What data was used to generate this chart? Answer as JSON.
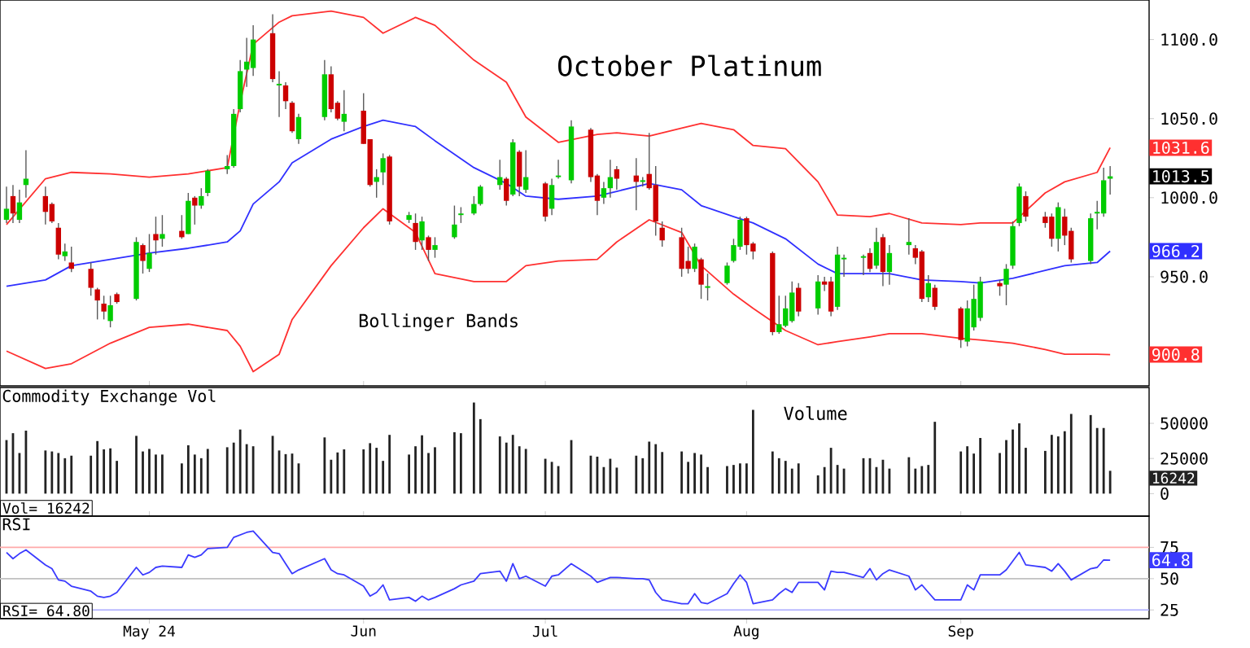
{
  "chart_data": [
    {
      "type": "candlestick",
      "title": "October Platinum",
      "tick_labels": "y",
      "x": [
        "2024-04-09",
        "2024-04-10",
        "2024-04-11",
        "2024-04-12",
        "2024-04-15",
        "2024-04-16",
        "2024-04-17",
        "2024-04-18",
        "2024-04-19",
        "2024-04-22",
        "2024-04-23",
        "2024-04-24",
        "2024-04-25",
        "2024-04-26",
        "2024-04-29",
        "2024-04-30",
        "2024-05-01",
        "2024-05-02",
        "2024-05-03",
        "2024-05-06",
        "2024-05-07",
        "2024-05-08",
        "2024-05-09",
        "2024-05-10",
        "2024-05-13",
        "2024-05-14",
        "2024-05-15",
        "2024-05-16",
        "2024-05-17",
        "2024-05-20",
        "2024-05-21",
        "2024-05-22",
        "2024-05-23",
        "2024-05-24",
        "2024-05-28",
        "2024-05-29",
        "2024-05-30",
        "2024-05-31",
        "2024-06-03",
        "2024-06-04",
        "2024-06-05",
        "2024-06-06",
        "2024-06-07",
        "2024-06-10",
        "2024-06-11",
        "2024-06-12",
        "2024-06-13",
        "2024-06-14",
        "2024-06-17",
        "2024-06-18",
        "2024-06-20",
        "2024-06-21",
        "2024-06-24",
        "2024-06-25",
        "2024-06-26",
        "2024-06-27",
        "2024-06-28",
        "2024-07-01",
        "2024-07-02",
        "2024-07-03",
        "2024-07-05",
        "2024-07-08",
        "2024-07-09",
        "2024-07-10",
        "2024-07-11",
        "2024-07-12",
        "2024-07-15",
        "2024-07-16",
        "2024-07-17",
        "2024-07-18",
        "2024-07-19",
        "2024-07-22",
        "2024-07-23",
        "2024-07-24",
        "2024-07-25",
        "2024-07-26",
        "2024-07-29",
        "2024-07-30",
        "2024-07-31",
        "2024-08-01",
        "2024-08-02",
        "2024-08-05",
        "2024-08-06",
        "2024-08-07",
        "2024-08-08",
        "2024-08-09",
        "2024-08-12",
        "2024-08-13",
        "2024-08-14",
        "2024-08-15",
        "2024-08-16",
        "2024-08-19",
        "2024-08-20",
        "2024-08-21",
        "2024-08-22",
        "2024-08-23",
        "2024-08-26",
        "2024-08-27",
        "2024-08-28",
        "2024-08-29",
        "2024-08-30",
        "2024-09-03",
        "2024-09-04",
        "2024-09-05",
        "2024-09-06",
        "2024-09-09",
        "2024-09-10",
        "2024-09-11",
        "2024-09-12",
        "2024-09-13",
        "2024-09-16",
        "2024-09-17",
        "2024-09-18",
        "2024-09-19",
        "2024-09-20",
        "2024-09-23",
        "2024-09-24",
        "2024-09-25",
        "2024-09-26"
      ],
      "ohlc": [
        [
          986,
          1007,
          984,
          993
        ],
        [
          1001,
          1008,
          984,
          990
        ],
        [
          986,
          1005,
          984,
          997
        ],
        [
          1008,
          1030,
          1000,
          1012
        ],
        [
          1001,
          1007,
          983,
          991
        ],
        [
          996,
          997,
          984,
          985
        ],
        [
          981,
          984,
          961,
          964
        ],
        [
          963,
          971,
          960,
          966
        ],
        [
          959,
          969,
          953,
          955
        ],
        [
          955,
          959,
          938,
          943
        ],
        [
          942,
          943,
          923,
          935
        ],
        [
          933,
          938,
          923,
          928
        ],
        [
          922,
          938,
          918,
          932
        ],
        [
          939,
          940,
          933,
          934
        ],
        [
          936,
          975,
          935,
          972
        ],
        [
          970,
          971,
          952,
          960
        ],
        [
          955,
          977,
          953,
          965
        ],
        [
          977,
          988,
          964,
          973
        ],
        [
          974,
          989,
          969,
          977
        ],
        [
          979,
          989,
          974,
          975
        ],
        [
          977,
          1003,
          977,
          998
        ],
        [
          1000,
          1001,
          983,
          995
        ],
        [
          995,
          1006,
          993,
          1001
        ],
        [
          1003,
          1018,
          1001,
          1017
        ],
        [
          1018,
          1027,
          1015,
          1020
        ],
        [
          1020,
          1056,
          1019,
          1053
        ],
        [
          1056,
          1087,
          1054,
          1080
        ],
        [
          1081,
          1101,
          1070,
          1086
        ],
        [
          1082,
          1109,
          1077,
          1100
        ],
        [
          1104,
          1116,
          1073,
          1075
        ],
        [
          1071,
          1080,
          1051,
          1072
        ],
        [
          1071,
          1073,
          1056,
          1061
        ],
        [
          1060,
          1061,
          1041,
          1042
        ],
        [
          1037,
          1053,
          1034,
          1051
        ],
        [
          1051,
          1087,
          1049,
          1078
        ],
        [
          1078,
          1083,
          1054,
          1056
        ],
        [
          1060,
          1061,
          1049,
          1050
        ],
        [
          1048,
          1068,
          1042,
          1053
        ],
        [
          1055,
          1066,
          1034,
          1034
        ],
        [
          1037,
          1037,
          1007,
          1008
        ],
        [
          1010,
          1018,
          1000,
          1013
        ],
        [
          1016,
          1028,
          1008,
          1025
        ],
        [
          1026,
          1027,
          983,
          985
        ],
        [
          986,
          991,
          984,
          989
        ],
        [
          984,
          990,
          967,
          972
        ],
        [
          973,
          988,
          967,
          985
        ],
        [
          975,
          976,
          960,
          967
        ],
        [
          967,
          975,
          962,
          970
        ],
        [
          975,
          995,
          974,
          983
        ],
        [
          989,
          994,
          984,
          990
        ],
        [
          990,
          1001,
          989,
          996
        ],
        [
          996,
          1008,
          995,
          1007
        ],
        [
          1008,
          1024,
          1005,
          1013
        ],
        [
          1012,
          1013,
          995,
          998
        ],
        [
          1002,
          1037,
          1001,
          1035
        ],
        [
          1029,
          1030,
          1001,
          1007
        ],
        [
          1005,
          1030,
          1003,
          1013
        ],
        [
          1009,
          1010,
          985,
          988
        ],
        [
          993,
          1012,
          989,
          1008
        ],
        [
          1013,
          1024,
          1012,
          1014
        ],
        [
          1011,
          1049,
          1009,
          1045
        ],
        [
          1043,
          1044,
          1010,
          1013
        ],
        [
          1014,
          1015,
          989,
          998
        ],
        [
          1000,
          1010,
          996,
          1006
        ],
        [
          1006,
          1024,
          1000,
          1013
        ],
        [
          1018,
          1020,
          1005,
          1012
        ],
        [
          1014,
          1025,
          992,
          1010
        ],
        [
          1010,
          1013,
          1007,
          1011
        ],
        [
          1015,
          1041,
          1005,
          1006
        ],
        [
          1008,
          1020,
          976,
          985
        ],
        [
          981,
          985,
          969,
          973
        ],
        [
          975,
          981,
          950,
          955
        ],
        [
          960,
          969,
          952,
          955
        ],
        [
          955,
          971,
          953,
          969
        ],
        [
          961,
          962,
          936,
          945
        ],
        [
          943,
          952,
          935,
          944
        ],
        [
          946,
          959,
          945,
          957
        ],
        [
          960,
          974,
          959,
          970
        ],
        [
          969,
          988,
          967,
          986
        ],
        [
          987,
          988,
          964,
          970
        ],
        [
          971,
          972,
          961,
          966
        ],
        [
          965,
          966,
          913,
          915
        ],
        [
          915,
          938,
          914,
          920
        ],
        [
          919,
          938,
          918,
          930
        ],
        [
          922,
          947,
          921,
          940
        ],
        [
          943,
          946,
          925,
          928
        ],
        [
          930,
          951,
          926,
          947
        ],
        [
          947,
          950,
          941,
          945
        ],
        [
          947,
          950,
          925,
          928
        ],
        [
          931,
          969,
          929,
          964
        ],
        [
          961,
          964,
          950,
          962
        ],
        [
          962,
          964,
          951,
          963
        ],
        [
          965,
          968,
          953,
          955
        ],
        [
          957,
          981,
          955,
          972
        ],
        [
          975,
          977,
          944,
          953
        ],
        [
          953,
          970,
          945,
          965
        ],
        [
          970,
          987,
          964,
          972
        ],
        [
          968,
          970,
          958,
          962
        ],
        [
          966,
          967,
          934,
          936
        ],
        [
          937,
          951,
          934,
          946
        ],
        [
          943,
          945,
          929,
          931
        ],
        [
          930,
          931,
          905,
          910
        ],
        [
          909,
          935,
          906,
          930
        ],
        [
          918,
          945,
          916,
          936
        ],
        [
          924,
          950,
          922,
          947
        ],
        [
          946,
          948,
          938,
          944
        ],
        [
          945,
          958,
          932,
          955
        ],
        [
          957,
          985,
          955,
          982
        ],
        [
          984,
          1009,
          982,
          1007
        ],
        [
          1001,
          1004,
          985,
          988
        ],
        [
          988,
          991,
          981,
          984
        ],
        [
          988,
          990,
          969,
          974
        ],
        [
          974,
          997,
          966,
          994
        ],
        [
          988,
          993,
          970,
          976
        ],
        [
          979,
          981,
          959,
          961
        ],
        [
          960,
          990,
          958,
          987
        ],
        [
          990,
          998,
          980,
          991
        ],
        [
          990,
          1019,
          988,
          1011
        ],
        [
          1012,
          1020,
          1002,
          1013.5
        ]
      ],
      "colors": [
        "#00cc00",
        "#cc0000",
        "#00cc00",
        "#00cc00",
        "#cc0000",
        "#cc0000",
        "#cc0000",
        "#00cc00",
        "#cc0000",
        "#cc0000",
        "#cc0000",
        "#cc0000",
        "#00cc00",
        "#cc0000",
        "#00cc00",
        "#cc0000",
        "#00cc00",
        "#cc0000",
        "#00cc00",
        "#cc0000",
        "#00cc00",
        "#cc0000",
        "#00cc00",
        "#00cc00",
        "#00cc00",
        "#00cc00",
        "#00cc00",
        "#00cc00",
        "#00cc00",
        "#cc0000",
        "#00cc00",
        "#cc0000",
        "#cc0000",
        "#00cc00",
        "#00cc00",
        "#cc0000",
        "#cc0000",
        "#00cc00",
        "#cc0000",
        "#cc0000",
        "#00cc00",
        "#00cc00",
        "#cc0000",
        "#00cc00",
        "#cc0000",
        "#00cc00",
        "#cc0000",
        "#00cc00",
        "#00cc00",
        "#00cc00",
        "#00cc00",
        "#00cc00",
        "#00cc00",
        "#cc0000",
        "#00cc00",
        "#cc0000",
        "#00cc00",
        "#cc0000",
        "#00cc00",
        "#00cc00",
        "#00cc00",
        "#cc0000",
        "#cc0000",
        "#00cc00",
        "#00cc00",
        "#cc0000",
        "#cc0000",
        "#00cc00",
        "#cc0000",
        "#cc0000",
        "#cc0000",
        "#cc0000",
        "#cc0000",
        "#00cc00",
        "#cc0000",
        "#00cc00",
        "#00cc00",
        "#00cc00",
        "#00cc00",
        "#cc0000",
        "#cc0000",
        "#cc0000",
        "#00cc00",
        "#00cc00",
        "#00cc00",
        "#cc0000",
        "#00cc00",
        "#cc0000",
        "#cc0000",
        "#00cc00",
        "#00cc00",
        "#00cc00",
        "#cc0000",
        "#00cc00",
        "#cc0000",
        "#00cc00",
        "#00cc00",
        "#cc0000",
        "#cc0000",
        "#00cc00",
        "#cc0000",
        "#cc0000",
        "#00cc00",
        "#00cc00",
        "#00cc00",
        "#cc0000",
        "#00cc00",
        "#00cc00",
        "#00cc00",
        "#cc0000",
        "#cc0000",
        "#cc0000",
        "#00cc00",
        "#cc0000",
        "#cc0000",
        "#00cc00",
        "#00cc00",
        "#00cc00",
        "#00cc00"
      ],
      "series": [
        {
          "type": "line",
          "color": "#ff3030",
          "x": [
            "2024-04-09",
            "2024-04-15",
            "2024-04-19",
            "2024-04-25",
            "2024-05-01",
            "2024-05-07",
            "2024-05-13",
            "2024-05-15",
            "2024-05-17",
            "2024-05-21",
            "2024-05-23",
            "2024-05-29",
            "2024-06-03",
            "2024-06-06",
            "2024-06-11",
            "2024-06-14",
            "2024-06-20",
            "2024-06-25",
            "2024-06-28",
            "2024-07-03",
            "2024-07-09",
            "2024-07-12",
            "2024-07-17",
            "2024-07-22",
            "2024-07-25",
            "2024-07-30",
            "2024-08-02",
            "2024-08-07",
            "2024-08-12",
            "2024-08-15",
            "2024-08-20",
            "2024-08-23",
            "2024-08-28",
            "2024-09-03",
            "2024-09-06",
            "2024-09-11",
            "2024-09-16",
            "2024-09-19",
            "2024-09-24",
            "2024-09-26"
          ],
          "values": [
            983,
            1012,
            1016,
            1015,
            1013,
            1015,
            1019,
            1060,
            1097,
            1111,
            1115,
            1118,
            1114,
            1104,
            1114,
            1109,
            1087,
            1073,
            1051,
            1035,
            1040,
            1041,
            1039,
            1044,
            1047,
            1043,
            1033,
            1031,
            1010,
            989,
            988,
            990,
            984,
            983,
            984,
            984,
            1003,
            1010,
            1016,
            1031.6
          ]
        },
        {
          "type": "line",
          "color": "#3030ff",
          "x": [
            "2024-04-09",
            "2024-04-15",
            "2024-04-19",
            "2024-04-25",
            "2024-05-01",
            "2024-05-07",
            "2024-05-13",
            "2024-05-15",
            "2024-05-17",
            "2024-05-21",
            "2024-05-23",
            "2024-05-29",
            "2024-06-03",
            "2024-06-06",
            "2024-06-11",
            "2024-06-14",
            "2024-06-20",
            "2024-06-25",
            "2024-06-28",
            "2024-07-03",
            "2024-07-09",
            "2024-07-12",
            "2024-07-17",
            "2024-07-22",
            "2024-07-25",
            "2024-07-30",
            "2024-08-02",
            "2024-08-07",
            "2024-08-12",
            "2024-08-15",
            "2024-08-20",
            "2024-08-23",
            "2024-08-28",
            "2024-09-03",
            "2024-09-06",
            "2024-09-11",
            "2024-09-16",
            "2024-09-19",
            "2024-09-24",
            "2024-09-26"
          ],
          "values": [
            944,
            948,
            957,
            961,
            965,
            968,
            972,
            979,
            996,
            1010,
            1022,
            1037,
            1045,
            1049,
            1045,
            1036,
            1019,
            1009,
            1001,
            999,
            1001,
            1004,
            1009,
            1005,
            995,
            988,
            984,
            974,
            958,
            952,
            952,
            952,
            948,
            947,
            946,
            949,
            954,
            957,
            959,
            966.2
          ]
        },
        {
          "type": "line",
          "color": "#ff3030",
          "x": [
            "2024-04-09",
            "2024-04-15",
            "2024-04-19",
            "2024-04-25",
            "2024-05-01",
            "2024-05-07",
            "2024-05-13",
            "2024-05-15",
            "2024-05-17",
            "2024-05-21",
            "2024-05-23",
            "2024-05-29",
            "2024-06-03",
            "2024-06-06",
            "2024-06-11",
            "2024-06-14",
            "2024-06-20",
            "2024-06-25",
            "2024-06-28",
            "2024-07-03",
            "2024-07-09",
            "2024-07-12",
            "2024-07-17",
            "2024-07-22",
            "2024-07-25",
            "2024-07-30",
            "2024-08-02",
            "2024-08-07",
            "2024-08-12",
            "2024-08-15",
            "2024-08-20",
            "2024-08-23",
            "2024-08-28",
            "2024-09-03",
            "2024-09-06",
            "2024-09-11",
            "2024-09-16",
            "2024-09-19",
            "2024-09-24",
            "2024-09-26"
          ],
          "values": [
            903,
            892,
            895,
            908,
            918,
            920,
            916,
            906,
            890,
            901,
            923,
            957,
            981,
            993,
            978,
            952,
            947,
            947,
            957,
            960,
            961,
            972,
            986,
            978,
            957,
            939,
            930,
            916,
            907,
            909,
            912,
            914,
            914,
            911,
            910,
            908,
            904,
            901,
            901,
            900.8
          ]
        }
      ],
      "annotations": [
        "Bollinger Bands",
        "1031.6",
        "1013.5",
        "966.2",
        "900.8"
      ],
      "xlim": [
        "2024-04-08",
        "2024-10-02"
      ],
      "ylim": [
        881,
        1125
      ],
      "xticks": [
        {
          "value": "2024-05-01",
          "label": null
        },
        {
          "value": "2024-06-03",
          "label": null
        },
        {
          "value": "2024-07-01",
          "label": null
        },
        {
          "value": "2024-08-01",
          "label": null
        },
        {
          "value": "2024-09-03",
          "label": null
        }
      ],
      "yticks": [
        {
          "value": 950,
          "label": "950.0"
        },
        {
          "value": 1000,
          "label": "1000.0"
        },
        {
          "value": 1050,
          "label": "1050.0"
        },
        {
          "value": 1100,
          "label": "1100.0"
        }
      ]
    },
    {
      "type": "bar",
      "title": "Commodity Exchange Vol",
      "tick_labels": "y",
      "color": "#222222",
      "x": [
        "2024-04-09",
        "2024-04-10",
        "2024-04-11",
        "2024-04-12",
        "2024-04-15",
        "2024-04-16",
        "2024-04-17",
        "2024-04-18",
        "2024-04-19",
        "2024-04-22",
        "2024-04-23",
        "2024-04-24",
        "2024-04-25",
        "2024-04-26",
        "2024-04-29",
        "2024-04-30",
        "2024-05-01",
        "2024-05-02",
        "2024-05-03",
        "2024-05-06",
        "2024-05-07",
        "2024-05-08",
        "2024-05-09",
        "2024-05-10",
        "2024-05-13",
        "2024-05-14",
        "2024-05-15",
        "2024-05-16",
        "2024-05-17",
        "2024-05-20",
        "2024-05-21",
        "2024-05-22",
        "2024-05-23",
        "2024-05-24",
        "2024-05-28",
        "2024-05-29",
        "2024-05-30",
        "2024-05-31",
        "2024-06-03",
        "2024-06-04",
        "2024-06-05",
        "2024-06-06",
        "2024-06-07",
        "2024-06-10",
        "2024-06-11",
        "2024-06-12",
        "2024-06-13",
        "2024-06-14",
        "2024-06-17",
        "2024-06-18",
        "2024-06-20",
        "2024-06-21",
        "2024-06-24",
        "2024-06-25",
        "2024-06-26",
        "2024-06-27",
        "2024-06-28",
        "2024-07-01",
        "2024-07-02",
        "2024-07-03",
        "2024-07-05",
        "2024-07-08",
        "2024-07-09",
        "2024-07-10",
        "2024-07-11",
        "2024-07-12",
        "2024-07-15",
        "2024-07-16",
        "2024-07-17",
        "2024-07-18",
        "2024-07-19",
        "2024-07-22",
        "2024-07-23",
        "2024-07-24",
        "2024-07-25",
        "2024-07-26",
        "2024-07-29",
        "2024-07-30",
        "2024-07-31",
        "2024-08-01",
        "2024-08-02",
        "2024-08-05",
        "2024-08-06",
        "2024-08-07",
        "2024-08-08",
        "2024-08-09",
        "2024-08-12",
        "2024-08-13",
        "2024-08-14",
        "2024-08-15",
        "2024-08-16",
        "2024-08-19",
        "2024-08-20",
        "2024-08-21",
        "2024-08-22",
        "2024-08-23",
        "2024-08-26",
        "2024-08-27",
        "2024-08-28",
        "2024-08-29",
        "2024-08-30",
        "2024-09-03",
        "2024-09-04",
        "2024-09-05",
        "2024-09-06",
        "2024-09-09",
        "2024-09-10",
        "2024-09-11",
        "2024-09-12",
        "2024-09-13",
        "2024-09-16",
        "2024-09-17",
        "2024-09-18",
        "2024-09-19",
        "2024-09-20",
        "2024-09-23",
        "2024-09-24",
        "2024-09-25",
        "2024-09-26"
      ],
      "values": [
        38100,
        43000,
        28900,
        44800,
        30700,
        30000,
        28900,
        25200,
        27000,
        27000,
        37400,
        31500,
        32200,
        23300,
        41100,
        30000,
        31800,
        27800,
        27800,
        21500,
        34400,
        27800,
        25200,
        31800,
        33000,
        36300,
        45600,
        35200,
        33700,
        41100,
        30700,
        28100,
        28500,
        21500,
        40000,
        24100,
        29300,
        31500,
        31500,
        35900,
        32600,
        23300,
        41800,
        27800,
        33700,
        41500,
        28900,
        33000,
        43700,
        43000,
        64800,
        53000,
        40700,
        36300,
        41800,
        33700,
        31800,
        24800,
        22600,
        19600,
        38100,
        27000,
        26300,
        18900,
        24800,
        18500,
        27000,
        25200,
        37000,
        35200,
        29600,
        30000,
        22600,
        28900,
        27800,
        18900,
        19600,
        20400,
        21500,
        21500,
        59600,
        30000,
        25200,
        23300,
        17800,
        21500,
        13000,
        18900,
        32600,
        20400,
        17800,
        25200,
        25200,
        18900,
        24100,
        17800,
        25900,
        17800,
        19600,
        20400,
        51100,
        30000,
        33700,
        28500,
        39600,
        28900,
        38100,
        45600,
        50000,
        32600,
        30400,
        41800,
        40700,
        44400,
        56700,
        55900,
        46700,
        46700,
        16242
      ],
      "annotations": [
        "Volume",
        "Vol= 16242",
        "16242"
      ],
      "xlim": [
        "2024-04-08",
        "2024-10-02"
      ],
      "ylim": [
        -16000,
        75500
      ],
      "xticks": [
        {
          "value": "2024-05-01",
          "label": null
        },
        {
          "value": "2024-06-03",
          "label": null
        },
        {
          "value": "2024-07-01",
          "label": null
        },
        {
          "value": "2024-08-01",
          "label": null
        },
        {
          "value": "2024-09-03",
          "label": null
        }
      ],
      "yticks": [
        0,
        25000,
        50000
      ]
    },
    {
      "type": "line",
      "title": "RSI",
      "color": "#3a3aff",
      "x": [
        "2024-04-09",
        "2024-04-10",
        "2024-04-11",
        "2024-04-12",
        "2024-04-15",
        "2024-04-16",
        "2024-04-17",
        "2024-04-18",
        "2024-04-19",
        "2024-04-22",
        "2024-04-23",
        "2024-04-24",
        "2024-04-25",
        "2024-04-26",
        "2024-04-29",
        "2024-04-30",
        "2024-05-01",
        "2024-05-02",
        "2024-05-03",
        "2024-05-06",
        "2024-05-07",
        "2024-05-08",
        "2024-05-09",
        "2024-05-10",
        "2024-05-13",
        "2024-05-14",
        "2024-05-15",
        "2024-05-16",
        "2024-05-17",
        "2024-05-20",
        "2024-05-21",
        "2024-05-22",
        "2024-05-23",
        "2024-05-24",
        "2024-05-28",
        "2024-05-29",
        "2024-05-30",
        "2024-05-31",
        "2024-06-03",
        "2024-06-04",
        "2024-06-05",
        "2024-06-06",
        "2024-06-07",
        "2024-06-10",
        "2024-06-11",
        "2024-06-12",
        "2024-06-13",
        "2024-06-14",
        "2024-06-17",
        "2024-06-18",
        "2024-06-20",
        "2024-06-21",
        "2024-06-24",
        "2024-06-25",
        "2024-06-26",
        "2024-06-27",
        "2024-06-28",
        "2024-07-01",
        "2024-07-02",
        "2024-07-03",
        "2024-07-05",
        "2024-07-08",
        "2024-07-09",
        "2024-07-10",
        "2024-07-11",
        "2024-07-12",
        "2024-07-15",
        "2024-07-16",
        "2024-07-17",
        "2024-07-18",
        "2024-07-19",
        "2024-07-22",
        "2024-07-23",
        "2024-07-24",
        "2024-07-25",
        "2024-07-26",
        "2024-07-29",
        "2024-07-30",
        "2024-07-31",
        "2024-08-01",
        "2024-08-02",
        "2024-08-05",
        "2024-08-06",
        "2024-08-07",
        "2024-08-08",
        "2024-08-09",
        "2024-08-12",
        "2024-08-13",
        "2024-08-14",
        "2024-08-15",
        "2024-08-16",
        "2024-08-19",
        "2024-08-20",
        "2024-08-21",
        "2024-08-22",
        "2024-08-23",
        "2024-08-26",
        "2024-08-27",
        "2024-08-28",
        "2024-08-29",
        "2024-08-30",
        "2024-09-03",
        "2024-09-04",
        "2024-09-05",
        "2024-09-06",
        "2024-09-09",
        "2024-09-10",
        "2024-09-11",
        "2024-09-12",
        "2024-09-13",
        "2024-09-16",
        "2024-09-17",
        "2024-09-18",
        "2024-09-19",
        "2024-09-20",
        "2024-09-23",
        "2024-09-24",
        "2024-09-25",
        "2024-09-26"
      ],
      "values": [
        71,
        66,
        70,
        73,
        61,
        58,
        49,
        48,
        44,
        40,
        36,
        35,
        36,
        39,
        59,
        53,
        55,
        59,
        60,
        59,
        69,
        67,
        69,
        74,
        75,
        83,
        85,
        87,
        88,
        71,
        70,
        62,
        54,
        57,
        66,
        57,
        54,
        53,
        44,
        36,
        39,
        45,
        33,
        35,
        32,
        36,
        33,
        35,
        42,
        45,
        48,
        54,
        56,
        48,
        62,
        50,
        52,
        44,
        52,
        53,
        62,
        52,
        47,
        49,
        51,
        51,
        50,
        50,
        49,
        39,
        33,
        30,
        30,
        38,
        31,
        30,
        38,
        46,
        53,
        47,
        30,
        33,
        38,
        42,
        39,
        47,
        47,
        41,
        56,
        55,
        55,
        51,
        58,
        49,
        54,
        57,
        52,
        41,
        45,
        39,
        33,
        33,
        45,
        41,
        53,
        53,
        57,
        64,
        71,
        61,
        59,
        56,
        62,
        56,
        49,
        58,
        59,
        65,
        64.8
      ],
      "annotations": [
        "RSI= 64.80",
        "64.8"
      ],
      "ref_lines": [
        {
          "axis": "y",
          "value": 75,
          "color": "#ffaaaa"
        },
        {
          "axis": "y",
          "value": 50,
          "color": "#c0c0c0"
        },
        {
          "axis": "y",
          "value": 25,
          "color": "#aaaaff"
        }
      ],
      "xlim": [
        "2024-04-08",
        "2024-10-02"
      ],
      "ylim": [
        18,
        100
      ],
      "xticks": [
        {
          "value": "2024-05-01",
          "label": "May 24"
        },
        {
          "value": "2024-06-03",
          "label": "Jun"
        },
        {
          "value": "2024-07-01",
          "label": "Jul"
        },
        {
          "value": "2024-08-01",
          "label": "Aug"
        },
        {
          "value": "2024-09-03",
          "label": "Sep"
        }
      ],
      "yticks": [
        25,
        50,
        75
      ]
    }
  ]
}
